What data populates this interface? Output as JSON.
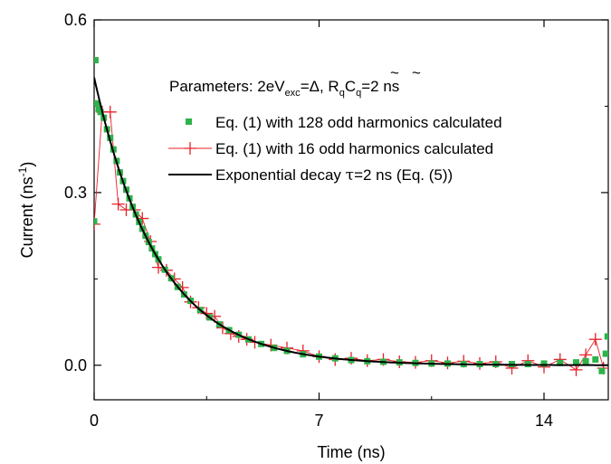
{
  "chart_data": {
    "type": "scatter",
    "xlabel": "Time (ns)",
    "ylabel": "Current (ns⁻¹)",
    "xlim": [
      0,
      16
    ],
    "ylim": [
      -0.06,
      0.6
    ],
    "xticks": [
      0,
      7,
      14
    ],
    "xtick_labels": [
      "0",
      "7",
      "14"
    ],
    "yticks": [
      0.0,
      0.3,
      0.6
    ],
    "ytick_labels": [
      "0.0",
      "0.3",
      "0.6"
    ],
    "annotation": "Parameters: 2eVexc=Δ, R̃qC̃q=2 ns",
    "legend_position": "top-right",
    "series": [
      {
        "name": "Eq. (1) with 128 odd harmonics calculated",
        "style": "square-markers",
        "color": "#2db34a",
        "x": [
          0.0,
          0.04,
          0.08,
          0.14,
          0.2,
          0.3,
          0.4,
          0.5,
          0.6,
          0.7,
          0.8,
          0.9,
          1.0,
          1.1,
          1.2,
          1.3,
          1.4,
          1.5,
          1.6,
          1.7,
          1.8,
          1.9,
          2.0,
          2.2,
          2.4,
          2.6,
          2.8,
          3.0,
          3.3,
          3.6,
          3.9,
          4.2,
          4.5,
          4.8,
          5.2,
          5.6,
          6.0,
          6.5,
          7.0,
          7.5,
          8.0,
          8.5,
          9.0,
          9.5,
          10.0,
          10.5,
          11.0,
          11.5,
          12.0,
          12.5,
          13.0,
          13.5,
          14.0,
          14.5,
          15.0,
          15.3,
          15.6,
          15.8,
          15.92,
          15.98
        ],
        "y": [
          0.25,
          0.53,
          0.455,
          0.445,
          0.44,
          0.43,
          0.41,
          0.395,
          0.375,
          0.355,
          0.335,
          0.32,
          0.305,
          0.29,
          0.275,
          0.262,
          0.249,
          0.237,
          0.225,
          0.214,
          0.203,
          0.193,
          0.184,
          0.166,
          0.151,
          0.136,
          0.123,
          0.112,
          0.096,
          0.083,
          0.071,
          0.061,
          0.053,
          0.045,
          0.037,
          0.03,
          0.025,
          0.019,
          0.015,
          0.012,
          0.009,
          0.007,
          0.006,
          0.005,
          0.004,
          0.003,
          0.003,
          0.002,
          0.002,
          0.002,
          0.002,
          0.002,
          0.003,
          0.004,
          0.005,
          0.007,
          0.01,
          -0.01,
          0.02,
          0.05
        ]
      },
      {
        "name": "Eq. (1) with 16 odd harmonics calculated",
        "style": "plus-markers-with-line",
        "color": "#e8202a",
        "x": [
          0.0,
          0.25,
          0.5,
          0.75,
          1.0,
          1.25,
          1.5,
          1.75,
          2.0,
          2.25,
          2.5,
          2.75,
          3.0,
          3.25,
          3.5,
          3.75,
          4.0,
          4.25,
          4.5,
          4.75,
          5.0,
          5.5,
          6.0,
          6.5,
          7.0,
          7.5,
          8.0,
          8.5,
          9.0,
          9.5,
          10.0,
          10.5,
          11.0,
          11.5,
          12.0,
          12.5,
          13.0,
          13.5,
          14.0,
          14.5,
          15.0,
          15.3,
          15.6,
          15.85
        ],
        "y": [
          0.245,
          0.44,
          0.44,
          0.28,
          0.27,
          0.27,
          0.255,
          0.215,
          0.17,
          0.165,
          0.15,
          0.135,
          0.11,
          0.1,
          0.09,
          0.085,
          0.065,
          0.055,
          0.05,
          0.045,
          0.04,
          0.035,
          0.03,
          0.025,
          0.015,
          0.01,
          0.012,
          0.008,
          0.01,
          0.006,
          0.005,
          0.008,
          0.004,
          0.007,
          0.003,
          0.006,
          -0.005,
          0.008,
          -0.003,
          0.01,
          -0.008,
          0.018,
          0.045,
          -0.005
        ]
      },
      {
        "name": "Exponential decay τ=2 ns (Eq. (5))",
        "style": "line",
        "color": "#000000",
        "function": "0.5*exp(-t/2)",
        "x_range": [
          0,
          16
        ]
      }
    ]
  },
  "annotation_parts": {
    "prefix": "Parameters: 2eV",
    "sub_exc": "exc",
    "eq_delta": "=Δ, ",
    "r": "R",
    "sub_q1": "q",
    "c": "C",
    "sub_q2": "q",
    "suffix": "=2 ns",
    "tilde": "~"
  },
  "ylabel_parts": {
    "main": "Current (ns",
    "sup": "-1",
    "close": ")"
  },
  "legend_parts": {
    "exp_prefix": "Exponential decay ",
    "tau": "τ",
    "exp_suffix": "=2 ns (Eq. (5))"
  }
}
